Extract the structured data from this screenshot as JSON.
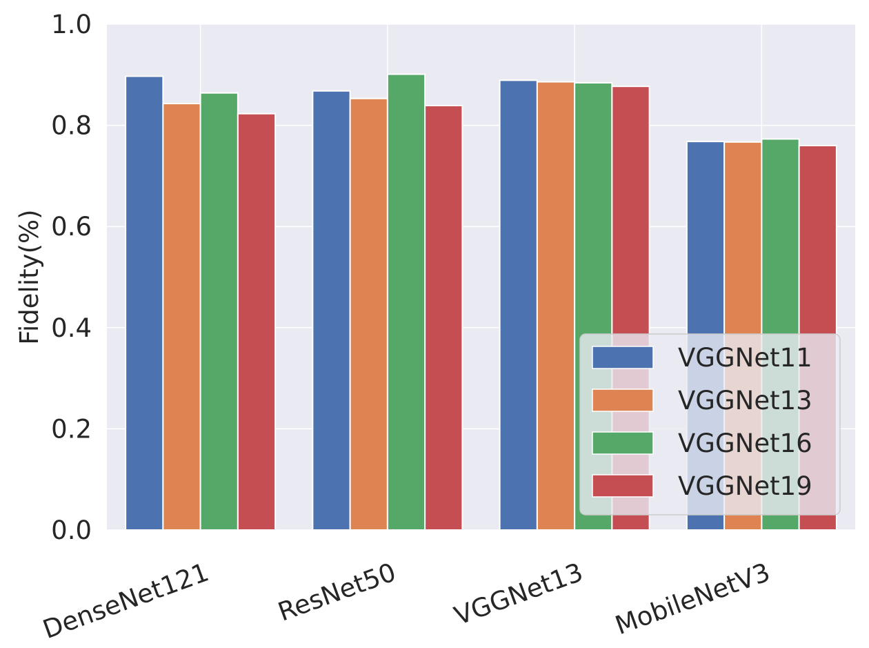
{
  "chart_data": {
    "type": "bar",
    "title": "",
    "xlabel": "",
    "ylabel": "Fidelity(%)",
    "ylim": [
      0,
      1.0
    ],
    "yticks": [
      "0.0",
      "0.2",
      "0.4",
      "0.6",
      "0.8",
      "1.0"
    ],
    "grid": true,
    "legend_position": "lower-right",
    "categories": [
      "DenseNet121",
      "ResNet50",
      "VGGNet13",
      "MobileNetV3"
    ],
    "series": [
      {
        "name": "VGGNet11",
        "color": "#4c72b0",
        "values": [
          0.897,
          0.868,
          0.889,
          0.768
        ]
      },
      {
        "name": "VGGNet13",
        "color": "#dd8452",
        "values": [
          0.843,
          0.853,
          0.886,
          0.767
        ]
      },
      {
        "name": "VGGNet16",
        "color": "#55a868",
        "values": [
          0.864,
          0.901,
          0.884,
          0.773
        ]
      },
      {
        "name": "VGGNet19",
        "color": "#c44e52",
        "values": [
          0.823,
          0.839,
          0.877,
          0.76
        ]
      }
    ],
    "colors": {
      "plot_background": "#eaeaf2",
      "grid": "#ffffff",
      "text": "#262626"
    }
  }
}
